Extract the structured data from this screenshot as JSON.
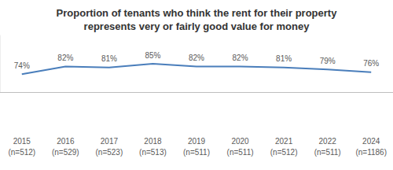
{
  "chart_data": {
    "type": "line",
    "title": "Proportion of tenants who think the rent for their property\nrepresents very or fairly good value for money",
    "categories": [
      "2015\n(n=512)",
      "2016\n(n=529)",
      "2017\n(n=523)",
      "2018\n(n=513)",
      "2019\n(n=511)",
      "2020\n(n=511)",
      "2021\n(n=512)",
      "2022\n(n=511)",
      "2024\n(n=1186)"
    ],
    "values": [
      74,
      82,
      81,
      85,
      82,
      82,
      81,
      79,
      76
    ],
    "value_labels": [
      "74%",
      "82%",
      "81%",
      "85%",
      "82%",
      "82%",
      "81%",
      "79%",
      "76%"
    ],
    "color": "#4a7ebb",
    "ylim": [
      55,
      115
    ],
    "data_labels": true,
    "tick_labels": "x",
    "grid": false
  }
}
